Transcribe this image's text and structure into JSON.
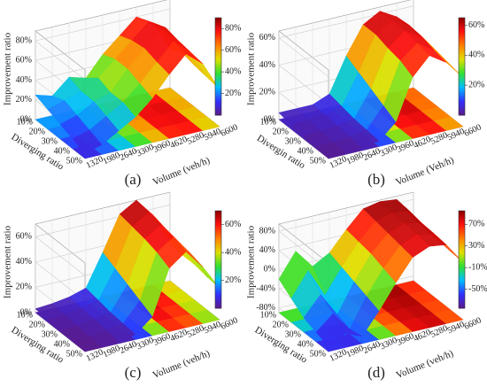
{
  "chart_data": [
    {
      "type": "surface3d",
      "panel_label": "(a)",
      "zlabel": "Improvement ratio",
      "ylabel": "Diverging ratio",
      "xlabel": "Volume (veh/h)",
      "x": [
        1320,
        1980,
        2640,
        3300,
        3960,
        4620,
        5280,
        5940,
        6600
      ],
      "y": [
        {
          "value": 10,
          "label": "10%"
        },
        {
          "value": 20,
          "label": "20%"
        },
        {
          "value": 30,
          "label": "30%"
        },
        {
          "value": 40,
          "label": "40%"
        },
        {
          "value": 50,
          "label": "50%"
        }
      ],
      "values": [
        [
          25,
          20,
          35,
          30,
          50,
          65,
          80,
          70,
          40
        ],
        [
          20,
          25,
          30,
          40,
          55,
          70,
          85,
          75,
          45
        ],
        [
          15,
          20,
          30,
          35,
          55,
          72,
          88,
          72,
          42
        ],
        [
          10,
          15,
          25,
          35,
          50,
          68,
          85,
          70,
          40
        ],
        [
          5,
          10,
          20,
          30,
          45,
          65,
          82,
          68,
          38
        ]
      ],
      "zlim": [
        0,
        90
      ],
      "zticks": [
        {
          "value": 0,
          "label": "0%"
        },
        {
          "value": 20,
          "label": "20%"
        },
        {
          "value": 40,
          "label": "40%"
        },
        {
          "value": 60,
          "label": "60%"
        },
        {
          "value": 80,
          "label": "80%"
        }
      ],
      "clim": [
        0,
        90
      ],
      "cticks": [
        {
          "value": 20,
          "label": "20%"
        },
        {
          "value": 40,
          "label": "40%"
        },
        {
          "value": 60,
          "label": "60%"
        },
        {
          "value": 80,
          "label": "80%"
        }
      ],
      "colors": [
        "#5a1a8a",
        "#3030ff",
        "#00bfff",
        "#30e030",
        "#e0e000",
        "#ff8000",
        "#ff1010",
        "#8b0000"
      ]
    },
    {
      "type": "surface3d",
      "panel_label": "(b)",
      "zlabel": "Improvement ratio",
      "ylabel": "Divergin ratio",
      "xlabel": "Volume (Veh/h)",
      "x": [
        1320,
        1980,
        2640,
        3300,
        3960,
        4620,
        5280,
        5940,
        6600
      ],
      "y": [
        {
          "value": 10,
          "label": "10%"
        },
        {
          "value": 20,
          "label": "20%"
        },
        {
          "value": 30,
          "label": "30%"
        },
        {
          "value": 40,
          "label": "40%"
        },
        {
          "value": 50,
          "label": "50%"
        }
      ],
      "values": [
        [
          5,
          5,
          5,
          10,
          35,
          55,
          62,
          55,
          42
        ],
        [
          3,
          4,
          5,
          8,
          30,
          55,
          63,
          56,
          40
        ],
        [
          2,
          3,
          4,
          6,
          25,
          52,
          62,
          55,
          40
        ],
        [
          1,
          2,
          3,
          5,
          20,
          50,
          60,
          52,
          38
        ],
        [
          0,
          1,
          2,
          4,
          15,
          45,
          58,
          50,
          36
        ]
      ],
      "zlim": [
        0,
        65
      ],
      "zticks": [
        {
          "value": 0,
          "label": "0%"
        },
        {
          "value": 20,
          "label": "20%"
        },
        {
          "value": 40,
          "label": "40%"
        },
        {
          "value": 60,
          "label": "60%"
        }
      ],
      "clim": [
        0,
        65
      ],
      "cticks": [
        {
          "value": 20,
          "label": "20%"
        },
        {
          "value": 40,
          "label": "40%"
        },
        {
          "value": 60,
          "label": "60%"
        }
      ],
      "colors": [
        "#5a1a8a",
        "#3030ff",
        "#00bfff",
        "#30e030",
        "#e0e000",
        "#ff8000",
        "#ff1010",
        "#8b0000"
      ]
    },
    {
      "type": "surface3d",
      "panel_label": "(c)",
      "zlabel": "Improvement ratio",
      "ylabel": "Diverging ratio",
      "xlabel": "Volume (veh/h)",
      "x": [
        1320,
        1980,
        2640,
        3300,
        3960,
        4620,
        5280,
        5940,
        6600
      ],
      "y": [
        {
          "value": 10,
          "label": "10%"
        },
        {
          "value": 20,
          "label": "20%"
        },
        {
          "value": 30,
          "label": "30%"
        },
        {
          "value": 40,
          "label": "40%"
        },
        {
          "value": 50,
          "label": "50%"
        }
      ],
      "values": [
        [
          3,
          4,
          6,
          10,
          35,
          62,
          70,
          55,
          30
        ],
        [
          2,
          3,
          5,
          8,
          30,
          60,
          68,
          52,
          28
        ],
        [
          1,
          2,
          4,
          6,
          25,
          58,
          66,
          50,
          28
        ],
        [
          0,
          1,
          3,
          5,
          20,
          55,
          64,
          48,
          26
        ],
        [
          0,
          1,
          2,
          4,
          15,
          50,
          60,
          45,
          25
        ]
      ],
      "zlim": [
        0,
        70
      ],
      "zticks": [
        {
          "value": 0,
          "label": "0%"
        },
        {
          "value": 20,
          "label": "20%"
        },
        {
          "value": 40,
          "label": "40%"
        },
        {
          "value": 60,
          "label": "60%"
        }
      ],
      "clim": [
        0,
        70
      ],
      "cticks": [
        {
          "value": 20,
          "label": "20%"
        },
        {
          "value": 40,
          "label": "40%"
        },
        {
          "value": 60,
          "label": "60%"
        }
      ],
      "colors": [
        "#5a1a8a",
        "#3030ff",
        "#00bfff",
        "#30e030",
        "#e0e000",
        "#ff8000",
        "#ff1010",
        "#8b0000"
      ]
    },
    {
      "type": "surface3d",
      "panel_label": "(d)",
      "zlabel": "Improvement ratio",
      "ylabel": "Diverging ratio",
      "xlabel": "Volume (veh/h)",
      "x": [
        1320,
        1980,
        2640,
        3300,
        3960,
        4620,
        5280,
        5940,
        6600
      ],
      "y": [
        {
          "value": 10,
          "label": "10%"
        },
        {
          "value": 20,
          "label": "20%"
        },
        {
          "value": 30,
          "label": "30%"
        },
        {
          "value": 40,
          "label": "40%"
        },
        {
          "value": 50,
          "label": "50%"
        }
      ],
      "values": [
        [
          -20,
          30,
          -10,
          10,
          50,
          85,
          92,
          88,
          40
        ],
        [
          -40,
          10,
          -50,
          0,
          45,
          80,
          90,
          85,
          38
        ],
        [
          -60,
          -20,
          -70,
          -10,
          40,
          75,
          88,
          80,
          35
        ],
        [
          -70,
          -40,
          -80,
          -20,
          30,
          70,
          85,
          78,
          32
        ],
        [
          -80,
          -60,
          -75,
          -30,
          20,
          65,
          80,
          75,
          30
        ]
      ],
      "zlim": [
        -90,
        95
      ],
      "zticks": [
        {
          "value": -80,
          "label": "-80%"
        },
        {
          "value": -40,
          "label": "-40%"
        },
        {
          "value": 0,
          "label": "0%"
        },
        {
          "value": 40,
          "label": "40%"
        },
        {
          "value": 80,
          "label": "80%"
        }
      ],
      "clim": [
        -85,
        95
      ],
      "cticks": [
        {
          "value": -50,
          "label": "-50%"
        },
        {
          "value": -10,
          "label": "-10%"
        },
        {
          "value": 30,
          "label": "30%"
        },
        {
          "value": 70,
          "label": "70%"
        }
      ],
      "colors": [
        "#5a1a8a",
        "#3030ff",
        "#00bfff",
        "#30e030",
        "#e0e000",
        "#ff8000",
        "#ff1010",
        "#8b0000"
      ]
    }
  ]
}
